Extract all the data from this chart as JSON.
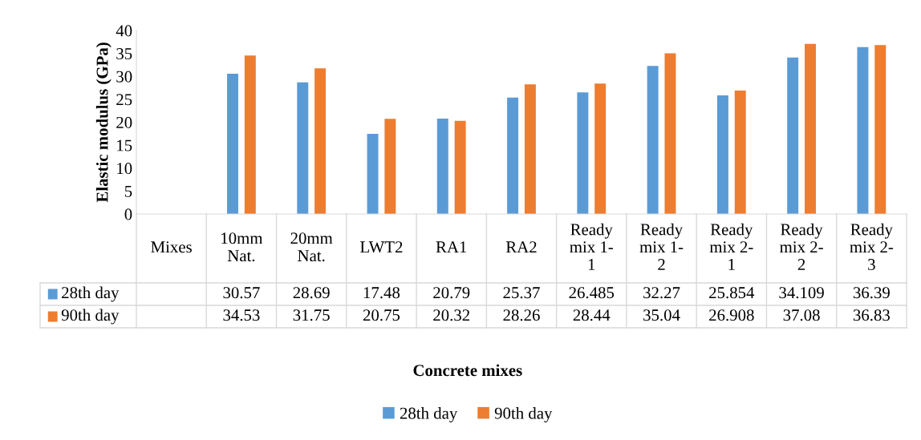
{
  "chart_data": {
    "type": "bar",
    "annotations": [
      "Concrete mixes"
    ],
    "ylabel": "Elastic modulus (GPa)",
    "categories": [
      "Mixes",
      "10mm Nat.",
      "20mm Nat.",
      "LWT2",
      "RA1",
      "RA2",
      "Ready mix 1-1",
      "Ready mix 1-2",
      "Ready mix 2-1",
      "Ready mix 2-2",
      "Ready mix 2-3"
    ],
    "series": [
      {
        "name": "28th day",
        "color": "#5b9bd5",
        "values": [
          null,
          30.57,
          28.69,
          17.48,
          20.79,
          25.37,
          26.485,
          32.27,
          25.854,
          34.109,
          36.39
        ]
      },
      {
        "name": "90th day",
        "color": "#ed7d31",
        "values": [
          null,
          34.53,
          31.75,
          20.75,
          20.32,
          28.26,
          28.44,
          35.04,
          26.908,
          37.08,
          36.83
        ]
      }
    ],
    "ylim": [
      0,
      40
    ],
    "yticks": [
      0,
      5,
      10,
      15,
      20,
      25,
      30,
      35,
      40
    ],
    "data_labels": true,
    "legend": "bottom"
  }
}
